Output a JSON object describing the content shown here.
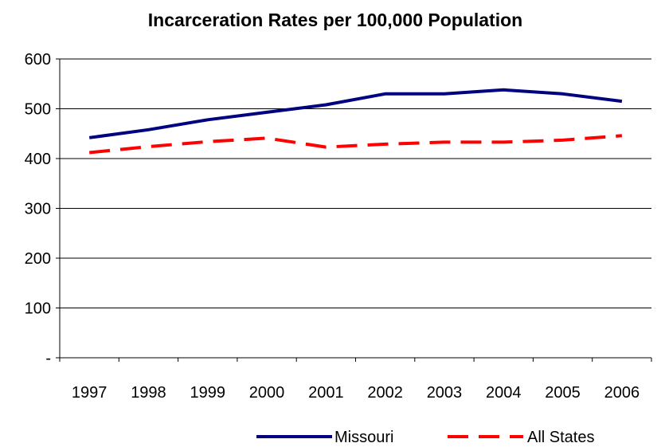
{
  "chart_data": {
    "type": "line",
    "title": "Incarceration Rates per 100,000 Population",
    "xlabel": "",
    "ylabel": "",
    "categories": [
      "1997",
      "1998",
      "1999",
      "2000",
      "2001",
      "2002",
      "2003",
      "2004",
      "2005",
      "2006"
    ],
    "y_ticks": [
      "-",
      "100",
      "200",
      "300",
      "400",
      "500",
      "600"
    ],
    "ylim": [
      0,
      600
    ],
    "grid": true,
    "legend_position": "bottom",
    "series": [
      {
        "name": "Missouri",
        "color": "#000080",
        "style": "solid",
        "values": [
          442,
          458,
          478,
          493,
          508,
          530,
          530,
          538,
          530,
          515
        ]
      },
      {
        "name": "All States",
        "color": "#ff0000",
        "style": "dashed",
        "values": [
          412,
          424,
          434,
          441,
          423,
          429,
          433,
          433,
          437,
          446
        ]
      }
    ]
  }
}
